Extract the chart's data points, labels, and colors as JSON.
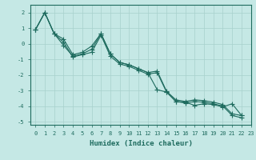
{
  "xlabel": "Humidex (Indice chaleur)",
  "ylabel": "",
  "xlim": [
    -0.5,
    23
  ],
  "ylim": [
    -5.2,
    2.5
  ],
  "background_color": "#c5e8e5",
  "grid_color": "#a8d0cc",
  "line_color": "#1e6b5e",
  "xticks": [
    0,
    1,
    2,
    3,
    4,
    5,
    6,
    7,
    8,
    9,
    10,
    11,
    12,
    13,
    14,
    15,
    16,
    17,
    18,
    19,
    20,
    21,
    22,
    23
  ],
  "yticks": [
    -5,
    -4,
    -3,
    -2,
    -1,
    0,
    1,
    2
  ],
  "line1_x": [
    0,
    1,
    2,
    3,
    4,
    5,
    6,
    7,
    8,
    9,
    10,
    11,
    12,
    13,
    14,
    15,
    16,
    17,
    18,
    19,
    20,
    21,
    22
  ],
  "line1_y": [
    0.9,
    2.0,
    0.65,
    0.3,
    -0.7,
    -0.55,
    -0.15,
    0.65,
    -0.65,
    -1.2,
    -1.35,
    -1.6,
    -1.85,
    -1.75,
    -3.05,
    -3.6,
    -3.7,
    -3.6,
    -3.65,
    -3.75,
    -3.9,
    -4.5,
    -4.6
  ],
  "line2_x": [
    0,
    1,
    2,
    3,
    4,
    5,
    6,
    7,
    8,
    9,
    10,
    11,
    12,
    13,
    14,
    15,
    16,
    17,
    18,
    19,
    20,
    21,
    22
  ],
  "line2_y": [
    0.9,
    2.0,
    0.65,
    0.1,
    -0.85,
    -0.7,
    -0.55,
    0.55,
    -0.8,
    -1.3,
    -1.45,
    -1.7,
    -1.95,
    -1.85,
    -3.1,
    -3.7,
    -3.8,
    -3.7,
    -3.75,
    -3.85,
    -4.0,
    -4.6,
    -4.75
  ],
  "line3_x": [
    0,
    1,
    2,
    3,
    4,
    5,
    6,
    7,
    8,
    9,
    10,
    11,
    12,
    13,
    14,
    15,
    16,
    17,
    18,
    19,
    20,
    21,
    22
  ],
  "line3_y": [
    0.9,
    2.0,
    0.65,
    -0.1,
    -0.8,
    -0.65,
    -0.35,
    0.65,
    -0.65,
    -1.2,
    -1.35,
    -1.6,
    -1.85,
    -2.95,
    -3.1,
    -3.7,
    -3.75,
    -3.95,
    -3.85,
    -3.9,
    -4.05,
    -3.85,
    -4.6
  ],
  "marker": "+",
  "markersize": 4,
  "linewidth": 0.8
}
